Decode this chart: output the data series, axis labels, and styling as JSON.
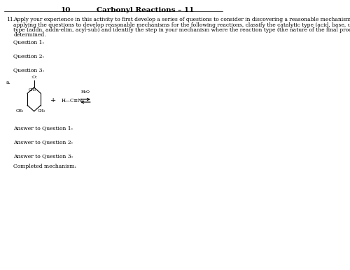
{
  "page_number_left": "10",
  "header_title": "Carbonyl Reactions – 11",
  "question_number": "11.",
  "intro_line1": "Apply your experience in this activity to first develop a series of questions to consider in discovering a reasonable mechanism and then",
  "intro_line2": "applying the questions to develop reasonable mechanisms for the following reactions, classify the catalytic type (acid, base, ur) and reaction",
  "intro_line3": "type (addn, addn-elim, acyl-sub) and identify the step in your mechanism where the reaction type (the nature of the final product) was",
  "intro_line4": "determined.",
  "q1_label": "Question 1:",
  "q2_label": "Question 2:",
  "q3_label": "Question 3:",
  "reaction_label": "a.",
  "answer_q1": "Answer to Question 1:",
  "answer_q2": "Answer to Question 2:",
  "answer_q3": "Answer to Question 3:",
  "completed": "Completed mechanism:",
  "bg_color": "#ffffff",
  "text_color": "#000000",
  "font_size_header": 7.5,
  "font_size_body": 5.5
}
